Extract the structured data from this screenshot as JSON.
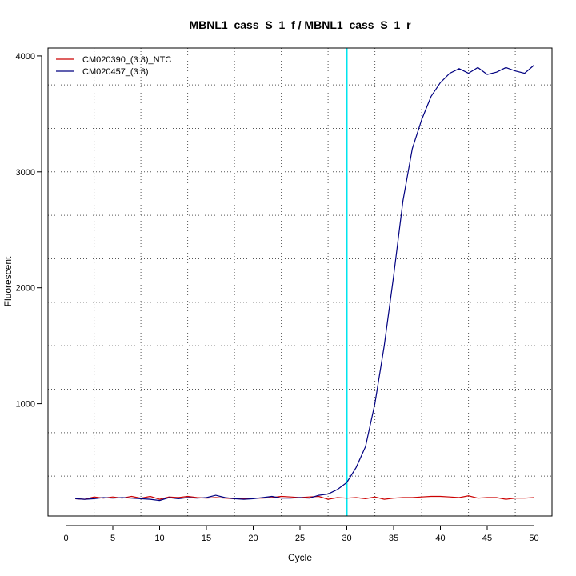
{
  "chart_data": {
    "type": "line",
    "title": "MBNL1_cass_S_1_f / MBNL1_cass_S_1_r",
    "xlabel": "Cycle",
    "ylabel": "Fluorescent",
    "xlim": [
      0,
      52
    ],
    "ylim": [
      0,
      4000
    ],
    "xticks": [
      0,
      5,
      10,
      15,
      20,
      25,
      30,
      35,
      40,
      45,
      50
    ],
    "yticks": [
      1000,
      2000,
      3000,
      4000
    ],
    "grid": true,
    "grid_x": [
      3,
      8,
      13,
      18,
      23,
      28,
      33,
      38,
      43,
      48
    ],
    "grid_y": [
      375,
      750,
      1125,
      1500,
      1875,
      2250,
      2625,
      3000,
      3375,
      3750
    ],
    "threshold_line": {
      "x": 30,
      "color": "#00e5ee"
    },
    "legend": {
      "position": "top-left"
    },
    "x": [
      1,
      2,
      3,
      4,
      5,
      6,
      7,
      8,
      9,
      10,
      11,
      12,
      13,
      14,
      15,
      16,
      17,
      18,
      19,
      20,
      21,
      22,
      23,
      24,
      25,
      26,
      27,
      28,
      29,
      30,
      31,
      32,
      33,
      34,
      35,
      36,
      37,
      38,
      39,
      40,
      41,
      42,
      43,
      44,
      45,
      46,
      47,
      48,
      49,
      50
    ],
    "series": [
      {
        "name": "CM020390_(3:8)_NTC",
        "color": "#cc0000",
        "values": [
          180,
          175,
          195,
          185,
          195,
          185,
          200,
          185,
          200,
          175,
          195,
          190,
          200,
          190,
          185,
          190,
          185,
          180,
          180,
          185,
          185,
          190,
          200,
          195,
          190,
          195,
          200,
          175,
          190,
          185,
          190,
          180,
          195,
          175,
          185,
          190,
          190,
          195,
          200,
          200,
          195,
          190,
          205,
          185,
          190,
          190,
          175,
          185,
          185,
          190
        ]
      },
      {
        "name": "CM020457_(3:8)",
        "color": "#000080",
        "values": [
          180,
          175,
          180,
          190,
          185,
          190,
          185,
          180,
          175,
          165,
          190,
          180,
          190,
          185,
          190,
          210,
          190,
          180,
          175,
          180,
          190,
          200,
          185,
          185,
          190,
          185,
          210,
          220,
          260,
          320,
          450,
          630,
          1000,
          1500,
          2100,
          2750,
          3200,
          3450,
          3650,
          3770,
          3850,
          3890,
          3850,
          3900,
          3840,
          3860,
          3900,
          3870,
          3850,
          3920
        ]
      }
    ]
  }
}
